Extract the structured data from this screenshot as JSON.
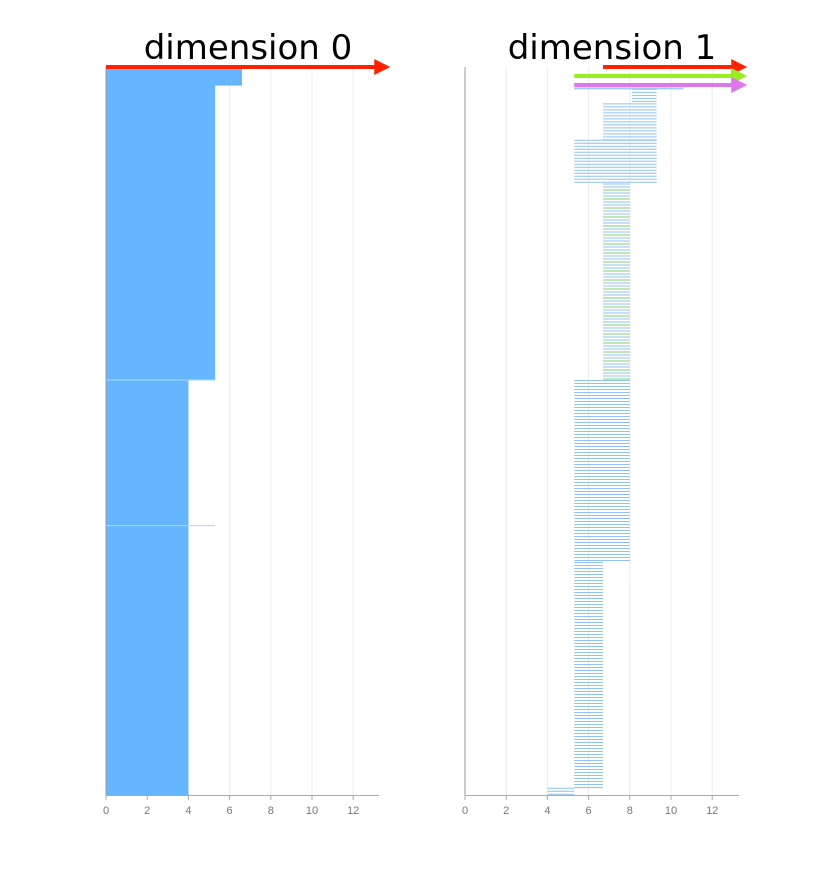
{
  "chart_data": [
    {
      "type": "bar",
      "orientation": "horizontal",
      "title": "dimension 0",
      "xlim": [
        0,
        13.2
      ],
      "x_ticks": [
        "0",
        "2",
        "4",
        "6",
        "8",
        "10",
        "12"
      ],
      "grid": true,
      "bar_color": "#66b6ff",
      "segments": [
        {
          "value": 6.6,
          "from": 0.0,
          "to": 0.025
        },
        {
          "value": 5.3,
          "from": 0.025,
          "to": 0.43
        },
        {
          "value": 4.0,
          "from": 0.43,
          "to": 1.0
        }
      ],
      "arrows": [
        {
          "color": "#ff2200",
          "from": 0.0,
          "to": 13.8
        }
      ]
    },
    {
      "type": "bar",
      "orientation": "horizontal",
      "title": "dimension 1",
      "xlim": [
        0,
        13.2
      ],
      "x_ticks": [
        "0",
        "2",
        "4",
        "6",
        "8",
        "10",
        "12"
      ],
      "grid": true,
      "bar_color": "#8fc3f3",
      "stripe_color": "#7fd06a",
      "segments": [
        {
          "start": 8.1,
          "end": 9.3,
          "from": 0.03,
          "to": 0.05
        },
        {
          "start": 6.7,
          "end": 9.3,
          "from": 0.05,
          "to": 0.1
        },
        {
          "start": 5.3,
          "end": 9.3,
          "from": 0.1,
          "to": 0.16
        },
        {
          "start": 6.7,
          "end": 8.0,
          "from": 0.16,
          "to": 0.43
        },
        {
          "start": 5.3,
          "end": 8.0,
          "from": 0.43,
          "to": 0.68
        },
        {
          "start": 5.3,
          "end": 6.7,
          "from": 0.68,
          "to": 0.99
        },
        {
          "start": 4.0,
          "end": 5.3,
          "from": 0.99,
          "to": 1.0
        }
      ],
      "top_bar": {
        "start": 5.3,
        "end": 10.6
      },
      "arrows": [
        {
          "color": "#ff2200",
          "from": 6.7,
          "to": 13.7
        },
        {
          "color": "#99ee22",
          "from": 5.3,
          "to": 13.7
        },
        {
          "color": "#dd77ee",
          "from": 5.3,
          "to": 13.7
        }
      ]
    }
  ]
}
